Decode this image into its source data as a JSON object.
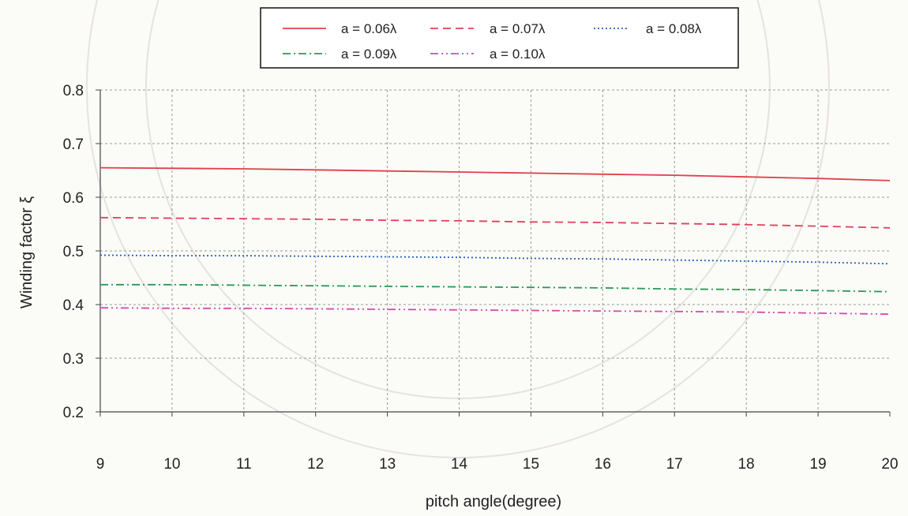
{
  "chart_data": {
    "type": "line",
    "title": "",
    "xlabel": "pitch angle(degree)",
    "ylabel": "Winding factor ξ",
    "x": [
      9,
      10,
      11,
      12,
      13,
      14,
      15,
      16,
      17,
      18,
      19,
      20
    ],
    "xlim": [
      9,
      20
    ],
    "ylim": [
      0.2,
      0.8
    ],
    "x_ticks": [
      "9",
      "10",
      "11",
      "12",
      "13",
      "14",
      "15",
      "16",
      "17",
      "18",
      "19",
      "20"
    ],
    "y_ticks": [
      "0.2",
      "0.3",
      "0.4",
      "0.5",
      "0.6",
      "0.7",
      "0.8"
    ],
    "grid": true,
    "legend_position": "top-center",
    "series": [
      {
        "name": "a = 0.06λ",
        "color": "#e0404a",
        "dash": "solid",
        "values": [
          0.655,
          0.654,
          0.653,
          0.651,
          0.649,
          0.647,
          0.645,
          0.643,
          0.641,
          0.638,
          0.635,
          0.631
        ]
      },
      {
        "name": "a = 0.07λ",
        "color": "#e0405a",
        "dash": "dashed",
        "values": [
          0.562,
          0.561,
          0.56,
          0.559,
          0.557,
          0.556,
          0.554,
          0.553,
          0.551,
          0.549,
          0.546,
          0.543
        ]
      },
      {
        "name": "a = 0.08λ",
        "color": "#2a5fb8",
        "dash": "dotted",
        "values": [
          0.492,
          0.491,
          0.491,
          0.49,
          0.489,
          0.488,
          0.486,
          0.485,
          0.483,
          0.481,
          0.479,
          0.476
        ]
      },
      {
        "name": "a = 0.09λ",
        "color": "#2a9a55",
        "dash": "dashdot",
        "values": [
          0.437,
          0.437,
          0.436,
          0.435,
          0.434,
          0.433,
          0.432,
          0.431,
          0.429,
          0.428,
          0.426,
          0.424
        ]
      },
      {
        "name": "a = 0.10λ",
        "color": "#d84aa8",
        "dash": "dashdotdot",
        "values": [
          0.394,
          0.393,
          0.393,
          0.392,
          0.391,
          0.39,
          0.389,
          0.388,
          0.387,
          0.386,
          0.384,
          0.382
        ]
      }
    ]
  }
}
